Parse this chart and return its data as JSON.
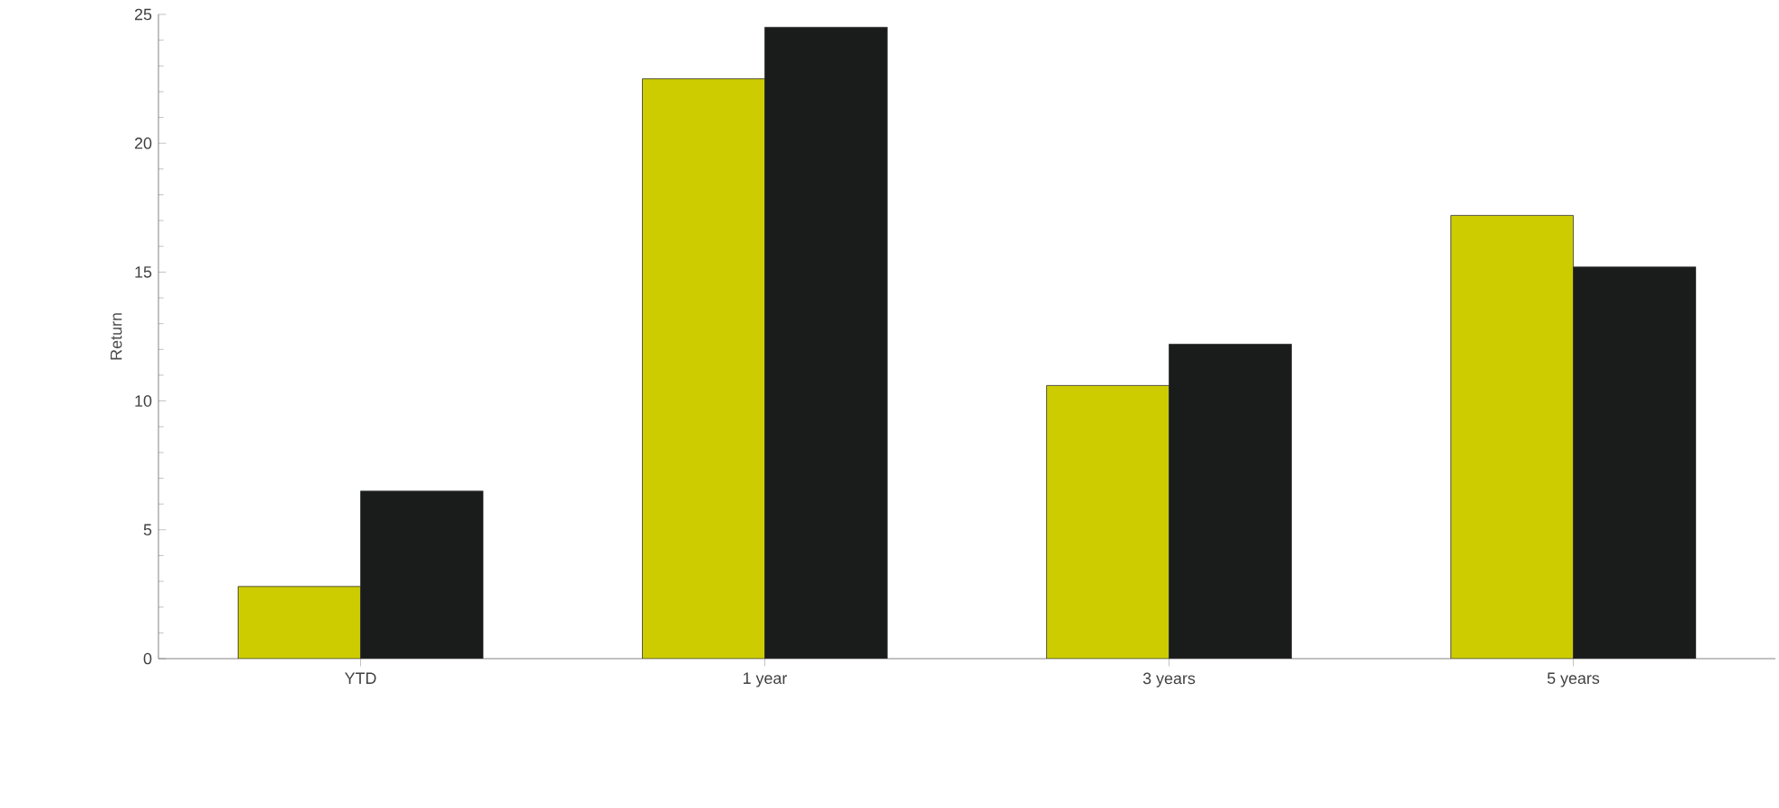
{
  "chart_data": {
    "type": "bar",
    "ylabel": "Return",
    "categories": [
      "YTD",
      "1 year",
      "3 years",
      "5 years"
    ],
    "series": [
      {
        "color": "#cccc00",
        "values": [
          2.8,
          22.5,
          10.6,
          17.2
        ]
      },
      {
        "color": "#1a1c1c",
        "values": [
          6.5,
          24.5,
          12.2,
          15.2
        ]
      }
    ],
    "ylim": [
      0,
      25
    ],
    "yticks": [
      0,
      5,
      10,
      15,
      20,
      25
    ],
    "grid": false
  }
}
